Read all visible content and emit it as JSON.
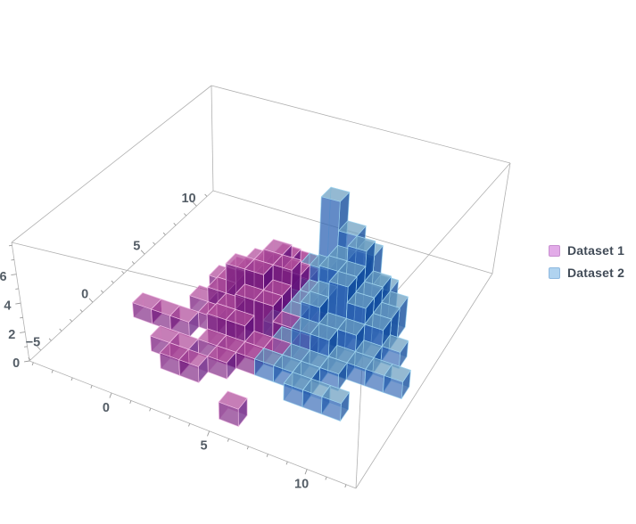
{
  "chart_data": {
    "type": "histogram3d",
    "title": "",
    "background": "#ffffff",
    "legend_position": "right",
    "legend_entries": [
      {
        "label": "Dataset 1",
        "swatch": "#e2abe8",
        "swatch_border": "#c88fd0"
      },
      {
        "label": "Dataset 2",
        "swatch": "#b0d3f0",
        "swatch_border": "#8fb9e0"
      }
    ],
    "frame_color": "#b0b0b0",
    "tick_color": "#9a9a9a",
    "label_color": "#545d66",
    "axes": {
      "x": {
        "range": [
          -4.2,
          12.5
        ],
        "majors": [
          0,
          5,
          10
        ],
        "labels": [
          "0",
          "5",
          "10"
        ],
        "minor_from": -4,
        "minor_to": 12
      },
      "y": {
        "range": [
          -6.1,
          11.6
        ],
        "majors": [
          -5,
          0,
          5,
          10
        ],
        "labels": [
          "−5",
          "0",
          "5",
          "10"
        ],
        "minor_from": -6,
        "minor_to": 11
      },
      "z": {
        "range": [
          0,
          8.2
        ],
        "majors": [
          0,
          2,
          4,
          6
        ],
        "labels": [
          "0",
          "2",
          "4",
          "6"
        ],
        "minor_from": 0,
        "minor_to": 8
      }
    },
    "bin_size": 1,
    "series": [
      {
        "name": "Dataset 1",
        "colors": {
          "top": "rgba(185,85,160,0.62)",
          "left": "rgba(124,34,129,0.66)",
          "right": "rgba(92,10,120,0.68)",
          "back": "rgba(124,34,129,0.28)",
          "edge": "rgba(240,188,228,0.9)"
        },
        "bins": [
          [
            3,
            7,
            1
          ],
          [
            2,
            6,
            1
          ],
          [
            3,
            6,
            2
          ],
          [
            4,
            6,
            2
          ],
          [
            1,
            5,
            1
          ],
          [
            2,
            5,
            2
          ],
          [
            3,
            5,
            3
          ],
          [
            4,
            5,
            2
          ],
          [
            0,
            4,
            1
          ],
          [
            1,
            4,
            2
          ],
          [
            2,
            4,
            3
          ],
          [
            3,
            4,
            4
          ],
          [
            4,
            4,
            3
          ],
          [
            5,
            4,
            2
          ],
          [
            1,
            3,
            2
          ],
          [
            2,
            3,
            3
          ],
          [
            3,
            3,
            4
          ],
          [
            4,
            3,
            4
          ],
          [
            5,
            3,
            2
          ],
          [
            6,
            3,
            1
          ],
          [
            0,
            2,
            1
          ],
          [
            1,
            2,
            2
          ],
          [
            2,
            2,
            4
          ],
          [
            3,
            2,
            4
          ],
          [
            4,
            2,
            3
          ],
          [
            5,
            2,
            2
          ],
          [
            6,
            2,
            1
          ],
          [
            1,
            1,
            1
          ],
          [
            2,
            1,
            2
          ],
          [
            3,
            1,
            3
          ],
          [
            4,
            1,
            3
          ],
          [
            5,
            1,
            2
          ],
          [
            6,
            1,
            1
          ],
          [
            -2,
            0,
            1
          ],
          [
            -1,
            0,
            1
          ],
          [
            0,
            0,
            1
          ],
          [
            2,
            0,
            2
          ],
          [
            3,
            0,
            2
          ],
          [
            4,
            0,
            1
          ],
          [
            5,
            0,
            1
          ],
          [
            2,
            -1,
            1
          ],
          [
            3,
            -1,
            1
          ],
          [
            4,
            -1,
            1
          ],
          [
            0,
            -2,
            1
          ],
          [
            1,
            -2,
            1
          ],
          [
            3,
            -2,
            1
          ],
          [
            1,
            -3,
            1
          ],
          [
            2,
            -3,
            1
          ],
          [
            5,
            -5,
            1
          ]
        ]
      },
      {
        "name": "Dataset 2",
        "colors": {
          "top": "rgba(118,168,196,0.62)",
          "left": "rgba(48,101,180,0.66)",
          "right": "rgba(8,68,150,0.68)",
          "back": "rgba(48,101,180,0.28)",
          "edge": "rgba(158,212,240,0.9)"
        },
        "bins": [
          [
            5,
            7,
            2
          ],
          [
            6,
            7,
            2
          ],
          [
            7,
            7,
            1
          ],
          [
            4,
            6,
            2
          ],
          [
            5,
            6,
            7
          ],
          [
            6,
            6,
            5
          ],
          [
            7,
            6,
            4
          ],
          [
            8,
            6,
            2
          ],
          [
            4,
            5,
            1
          ],
          [
            5,
            5,
            3
          ],
          [
            6,
            5,
            4
          ],
          [
            7,
            5,
            5
          ],
          [
            8,
            5,
            3
          ],
          [
            9,
            5,
            2
          ],
          [
            4,
            4,
            1
          ],
          [
            5,
            4,
            2
          ],
          [
            6,
            4,
            4
          ],
          [
            7,
            4,
            4
          ],
          [
            8,
            4,
            3
          ],
          [
            9,
            4,
            2
          ],
          [
            5,
            3,
            2
          ],
          [
            6,
            3,
            3
          ],
          [
            7,
            3,
            4
          ],
          [
            8,
            3,
            3
          ],
          [
            9,
            3,
            2
          ],
          [
            10,
            3,
            1
          ],
          [
            4,
            2,
            1
          ],
          [
            5,
            2,
            2
          ],
          [
            6,
            2,
            3
          ],
          [
            7,
            2,
            2
          ],
          [
            8,
            2,
            2
          ],
          [
            9,
            2,
            1
          ],
          [
            5,
            1,
            1
          ],
          [
            6,
            1,
            2
          ],
          [
            7,
            1,
            2
          ],
          [
            8,
            1,
            1
          ],
          [
            9,
            1,
            1
          ],
          [
            10,
            1,
            1
          ],
          [
            11,
            1,
            1
          ],
          [
            6,
            0,
            1
          ],
          [
            7,
            0,
            1
          ],
          [
            8,
            0,
            1
          ],
          [
            5,
            -1,
            1
          ],
          [
            6,
            -1,
            1
          ],
          [
            7,
            -1,
            1
          ],
          [
            7,
            -2,
            1
          ],
          [
            8,
            -2,
            1
          ],
          [
            9,
            -2,
            1
          ]
        ]
      }
    ]
  }
}
